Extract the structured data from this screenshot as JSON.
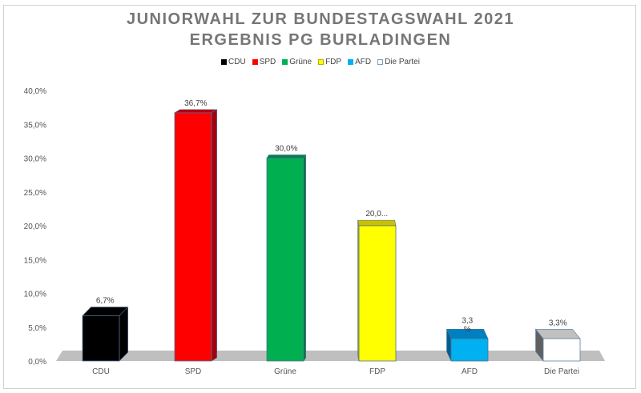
{
  "chart_data": {
    "type": "bar",
    "title": [
      "JUNIORWAHL ZUR BUNDESTAGSWAHL 2021",
      "ERGEBNIS PG BURLADINGEN"
    ],
    "categories": [
      "CDU",
      "SPD",
      "Grüne",
      "FDP",
      "AFD",
      "Die Partei"
    ],
    "values": [
      6.7,
      36.7,
      30.0,
      20.0,
      3.3,
      3.3
    ],
    "data_labels": [
      "6,7%",
      "36,7%",
      "30,0%",
      "20,0...",
      "3,3\n%",
      "3,3%"
    ],
    "colors": [
      "#000000",
      "#ff0000",
      "#00b050",
      "#ffff00",
      "#00b0f0",
      "#ffffff"
    ],
    "top_colors": [
      "#000000",
      "#b00010",
      "#00804a",
      "#c8c000",
      "#0080c0",
      "#c0c0c0"
    ],
    "side_colors": [
      "#000000",
      "#a00010",
      "#007040",
      "#b0b000",
      "#005f90",
      "#606060"
    ],
    "ylim": [
      0,
      40
    ],
    "yticks": [
      "0,0%",
      "5,0%",
      "10,0%",
      "15,0%",
      "20,0%",
      "25,0%",
      "30,0%",
      "35,0%",
      "40,0%"
    ],
    "xlabel": "",
    "ylabel": "",
    "grid": false,
    "legend_position": "top"
  }
}
